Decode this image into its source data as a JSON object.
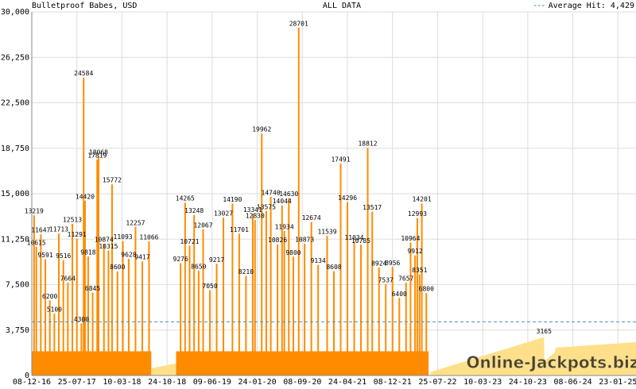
{
  "chart_data": {
    "type": "bar",
    "title": "Bulletproof Babes, USD",
    "subtitle": "ALL DATA",
    "watermark": "Online-Jackpots.biz",
    "xlim": [
      0,
      13.4
    ],
    "xticks": [
      {
        "value": 0,
        "label": "08-12-16"
      },
      {
        "value": 1,
        "label": "25-07-17"
      },
      {
        "value": 2,
        "label": "10-03-18"
      },
      {
        "value": 3,
        "label": "24-10-18"
      },
      {
        "value": 4,
        "label": "09-06-19"
      },
      {
        "value": 5,
        "label": "24-01-20"
      },
      {
        "value": 6,
        "label": "08-09-20"
      },
      {
        "value": 7,
        "label": "24-04-21"
      },
      {
        "value": 8,
        "label": "08-12-21"
      },
      {
        "value": 9,
        "label": "25-07-22"
      },
      {
        "value": 10,
        "label": "10-03-23"
      },
      {
        "value": 11,
        "label": "24-10-23"
      },
      {
        "value": 12,
        "label": "08-06-24"
      },
      {
        "value": 13,
        "label": "23-01-25"
      }
    ],
    "ylim": [
      0,
      30000
    ],
    "yticks": [
      0,
      {
        "value": 3750,
        "label": "3,750"
      },
      {
        "value": 7500,
        "label": "7,500"
      },
      {
        "value": 11250,
        "label": "11,250"
      },
      {
        "value": 15000,
        "label": "15,000"
      },
      {
        "value": 18750,
        "label": "18,750"
      },
      {
        "value": 22500,
        "label": "22,500"
      },
      {
        "value": 26250,
        "label": "26,250"
      },
      {
        "value": 30000,
        "label": "30,000"
      }
    ],
    "grid": true,
    "average": {
      "name": "Average Hit: 4,429",
      "value": 4429,
      "color": "#4a90b0"
    },
    "areas": [
      {
        "color": "#ff8c00",
        "x": [
          0,
          2.65,
          2.66,
          3.2,
          8.8
        ],
        "values": [
          2000,
          2000,
          null,
          2000,
          2000
        ]
      },
      {
        "color": "#ffe08a",
        "x": [
          2.65,
          3.2,
          3.21,
          8.85,
          11.36,
          11.37,
          11.6,
          11.62,
          13.4
        ],
        "values": [
          600,
          1000,
          null,
          300,
          3165,
          1200,
          1900,
          2300,
          2750
        ],
        "value_labels": [
          null,
          null,
          null,
          null,
          "3165",
          null,
          null,
          null,
          null
        ]
      }
    ],
    "series": [
      {
        "color": "#ff8c00",
        "label_color": "#a00000",
        "x": [
          0.05,
          0.1,
          0.2,
          0.3,
          0.4,
          0.5,
          0.6,
          0.7,
          0.8,
          0.9,
          1.0,
          1.1,
          1.15,
          1.18,
          1.25,
          1.35,
          1.45,
          1.48,
          1.6,
          1.7,
          1.78,
          1.9,
          2.02,
          2.15,
          2.3,
          2.45,
          2.6,
          3.3,
          3.4,
          3.5,
          3.6,
          3.7,
          3.8,
          3.95,
          4.1,
          4.25,
          4.45,
          4.6,
          4.75,
          4.9,
          4.95,
          5.1,
          5.2,
          5.3,
          5.45,
          5.55,
          5.6,
          5.7,
          5.8,
          5.92,
          6.05,
          6.2,
          6.35,
          6.55,
          6.7,
          6.85,
          7.0,
          7.15,
          7.3,
          7.45,
          7.55,
          7.7,
          7.85,
          8.0,
          8.15,
          8.3,
          8.4,
          8.5,
          8.55,
          8.6,
          8.65,
          8.75
        ],
        "values": [
          13219,
          10615,
          11647,
          9591,
          6200,
          5100,
          11713,
          9516,
          7664,
          12513,
          11291,
          4300,
          24584,
          14420,
          9818,
          6845,
          17819,
          18068,
          10874,
          10315,
          15772,
          8600,
          11093,
          9628,
          12257,
          9417,
          11066,
          9276,
          14265,
          10721,
          13248,
          8650,
          12067,
          7050,
          9217,
          13027,
          14190,
          11701,
          8210,
          13341,
          12830,
          19962,
          13575,
          14740,
          10826,
          14044,
          11934,
          14630,
          9800,
          28701,
          10873,
          12674,
          9134,
          11539,
          8608,
          17491,
          14296,
          11034,
          10785,
          18812,
          13517,
          8924,
          7537,
          8956,
          6400,
          7657,
          10964,
          9912,
          12993,
          8351,
          14201,
          6800
        ]
      }
    ]
  }
}
